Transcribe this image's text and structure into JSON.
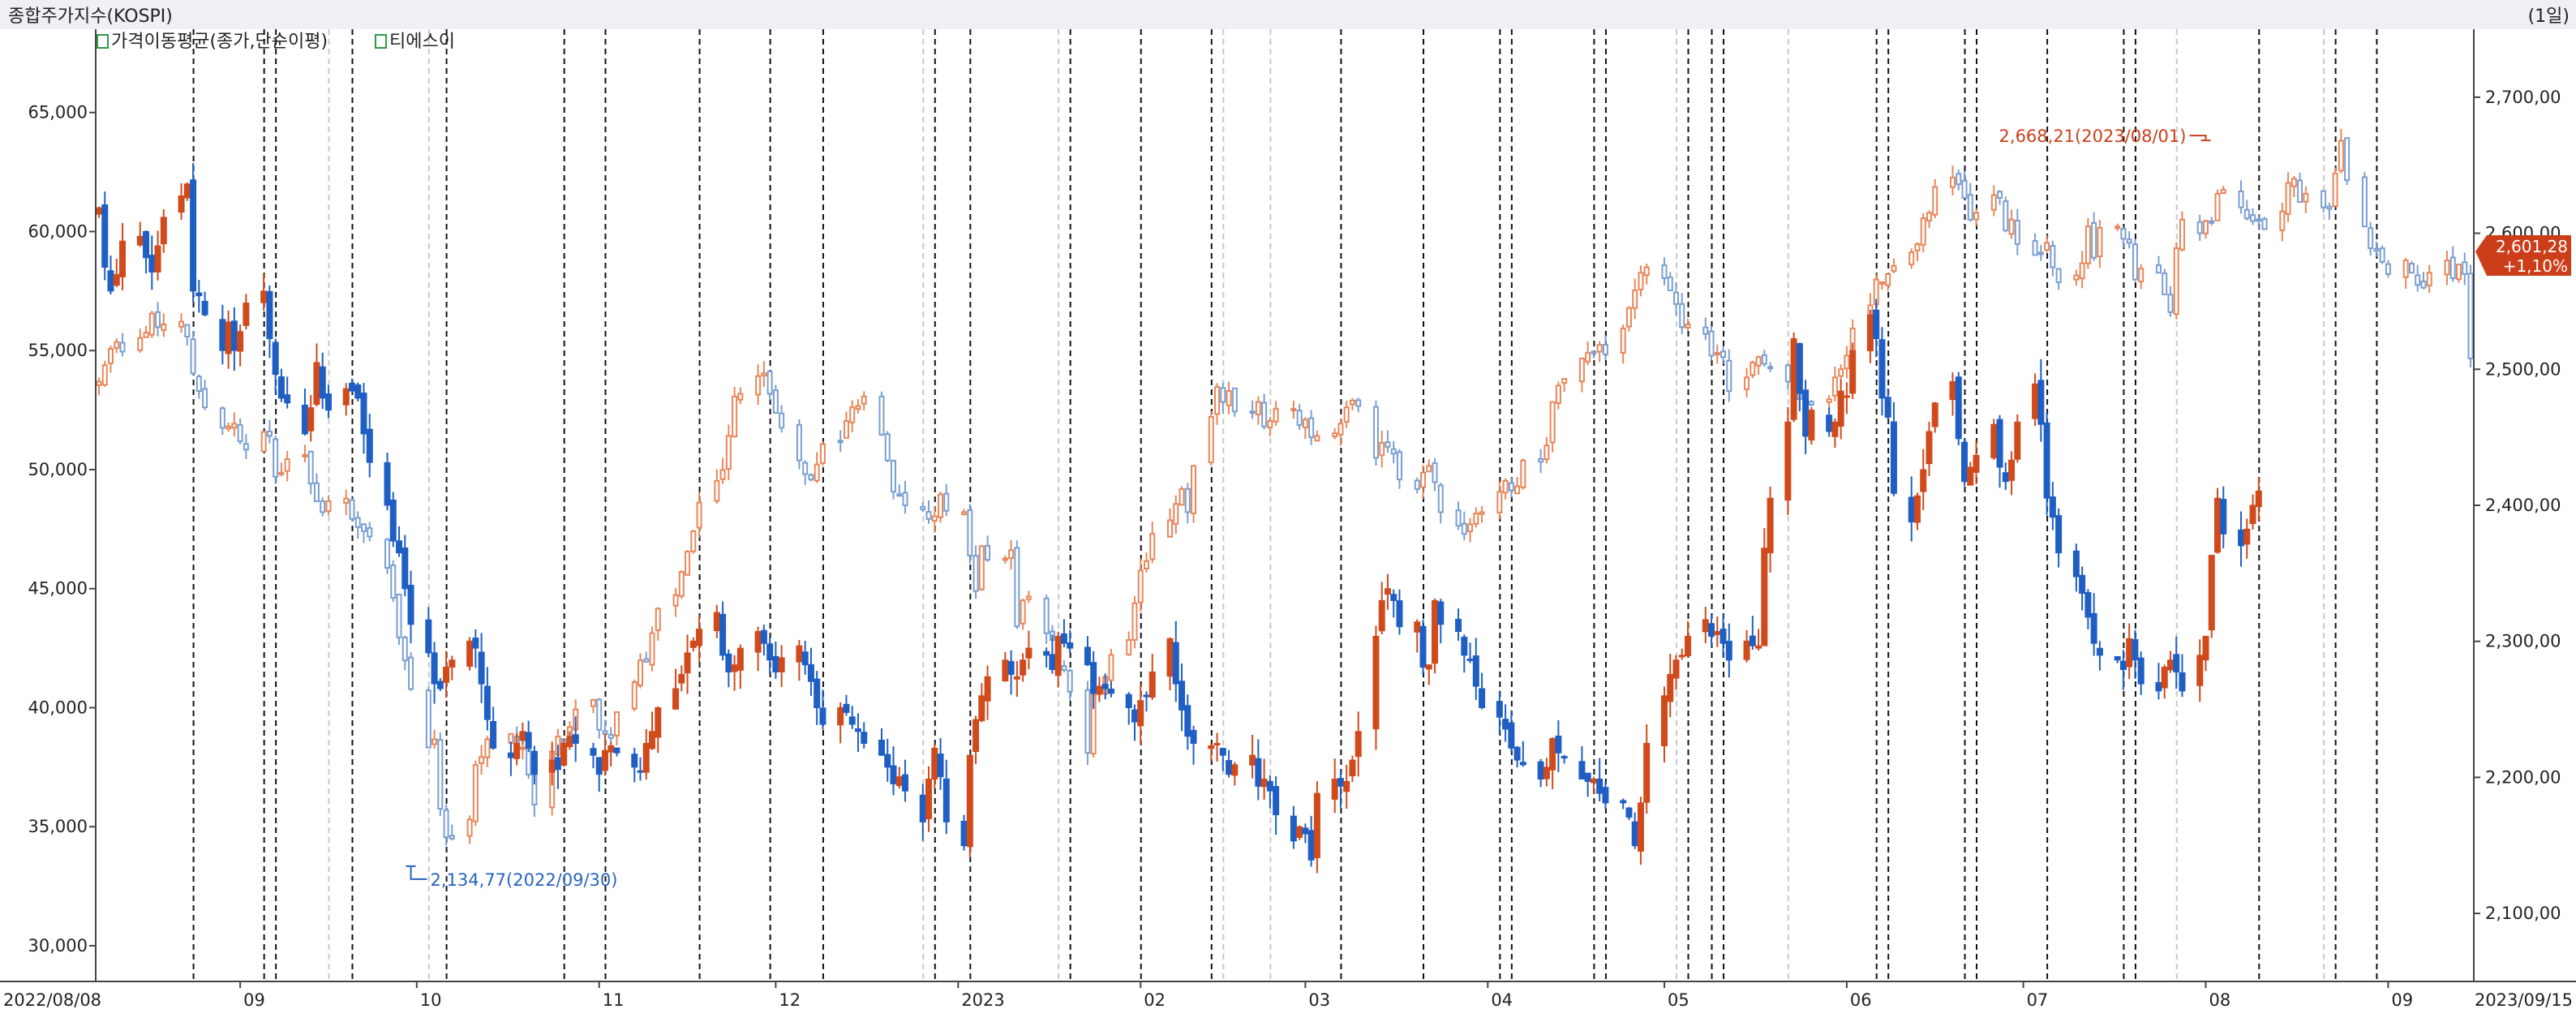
{
  "header": {
    "title": "종합주가지수(KOSPI)",
    "period": "(1일)",
    "legend": [
      {
        "icon": "checkbox-icon",
        "label": "가격이동평균(종가,단순이평)"
      },
      {
        "icon": "checkbox-icon",
        "label": "티에스이"
      }
    ]
  },
  "colors": {
    "up": "#d04a1c",
    "down": "#1f5fc4",
    "index_up": "#e8875a",
    "index_down": "#7a9fd2",
    "header_bg": "#eef0f4",
    "current_price_bg": "#cc3e1a"
  },
  "chart_data": {
    "type": "candlestick",
    "x_range": [
      "2022/08/08",
      "2023/09/15"
    ],
    "x_tick_labels": [
      "2022/08/08",
      "09",
      "10",
      "11",
      "12",
      "2023",
      "02",
      "03",
      "04",
      "05",
      "06",
      "07",
      "08",
      "09",
      "2023/09/15"
    ],
    "left_axis": {
      "ylim": [
        28500,
        68500
      ],
      "ticks": [
        "30,000",
        "35,000",
        "40,000",
        "45,000",
        "50,000",
        "55,000",
        "60,000",
        "65,000"
      ]
    },
    "right_axis": {
      "ylim": [
        2050,
        2750
      ],
      "ticks": [
        "2,100,00",
        "2,200,00",
        "2,300,00",
        "2,400,00",
        "2,500,00",
        "2,600,00",
        "2,700,00"
      ]
    },
    "annotations": {
      "low": {
        "label": "2,134,77(2022/09/30)",
        "value": 2134.77,
        "date": "2022/09/30"
      },
      "high": {
        "label": "2,668,21(2023/08/01)",
        "value": 2668.21,
        "date": "2023/08/01"
      }
    },
    "current_price": {
      "value": "2,601,28",
      "change": "+1,10%"
    },
    "stock_series": {
      "name": "티에스이",
      "close": [
        61000,
        58500,
        57500,
        58200,
        59600,
        59800,
        58900,
        58300,
        59400,
        60600,
        61500,
        62000,
        57500,
        57300,
        56500,
        55000,
        56200,
        55000,
        55800,
        57000,
        57500,
        55500,
        54000,
        53000,
        52800,
        51500,
        52600,
        54500,
        53000,
        52500,
        53400,
        53300,
        53000,
        51500,
        50300,
        48500,
        47000,
        46500,
        45000,
        43500,
        42300,
        41000,
        40800,
        41700,
        42000,
        42800,
        42500,
        41000,
        39500,
        38300,
        37900,
        38500,
        39000,
        38300,
        37200,
        37800,
        37400,
        38500,
        38800,
        38500,
        38000,
        37200,
        38200,
        38400,
        38100,
        37500,
        37300,
        38500,
        39000,
        40000,
        40800,
        41400,
        42300,
        42800,
        43300,
        44000,
        42200,
        41500,
        41800,
        42500,
        43200,
        42700,
        42000,
        41500,
        42100,
        42600,
        41800,
        41100,
        40000,
        39300,
        40000,
        39800,
        39300,
        39000,
        38500,
        38000,
        37500,
        36800,
        37100,
        36500,
        35200,
        37000,
        38300,
        37100,
        35200,
        34200,
        38000,
        39500,
        40500,
        41300,
        42000,
        41400,
        41300,
        42000,
        42500,
        42200,
        41600,
        43000,
        42700,
        42500,
        41800,
        40600,
        40900,
        40800,
        40600,
        40000,
        39400,
        40300,
        40500,
        41500,
        42900,
        41000,
        39900,
        38800,
        38500,
        38400,
        38500,
        38000,
        37200,
        37600,
        38000,
        36700,
        37000,
        36500,
        35500,
        34400,
        35000,
        34700,
        33600,
        36400,
        37000,
        36700,
        36900,
        37800,
        39000,
        43000,
        44500,
        45000,
        44500,
        43400,
        43600,
        41700,
        41800,
        44500,
        43500,
        43200,
        42200,
        42000,
        40900,
        40000,
        39600,
        39100,
        38300,
        37800,
        37600,
        37000,
        37500,
        38700,
        38100,
        37900,
        37000,
        36900,
        37000,
        36400,
        36000,
        36000,
        35400,
        34200,
        36000,
        38500,
        40500,
        41400,
        42000,
        42200,
        43000,
        43700,
        43000,
        43200,
        42700,
        42000,
        42800,
        42600,
        42600,
        46700,
        48800,
        52000,
        55500,
        53200,
        51400,
        52500,
        51600,
        52000,
        53300,
        53100,
        55000,
        56500,
        55500,
        53000,
        52200,
        49000,
        47800,
        48900,
        50000,
        51600,
        52800,
        53700,
        51300,
        49500,
        50100,
        50600,
        51900,
        50100,
        49500,
        50400,
        52000,
        53600,
        51900,
        48800,
        48000,
        46500,
        45500,
        44800,
        43800,
        42700,
        42200,
        42000,
        41600,
        42900,
        42000,
        41000,
        40700,
        41700,
        42000,
        41500,
        40700,
        42200,
        43000,
        46400,
        48800,
        47300,
        46800,
        47500,
        48500,
        49100
      ]
    },
    "index_series": {
      "name": "KOSPI",
      "close": [
        2491,
        2503,
        2515,
        2520,
        2513,
        2523,
        2527,
        2541,
        2531,
        2533,
        2535,
        2524,
        2497,
        2484,
        2472,
        2457,
        2458,
        2460,
        2447,
        2441,
        2454,
        2451,
        2421,
        2424,
        2434,
        2437,
        2416,
        2403,
        2395,
        2403,
        2405,
        2390,
        2384,
        2381,
        2377,
        2354,
        2332,
        2303,
        2286,
        2265,
        2222,
        2228,
        2177,
        2156,
        2155,
        2169,
        2209,
        2215,
        2228,
        2226,
        2232,
        2220,
        2222,
        2202,
        2180,
        2219,
        2230,
        2223,
        2237,
        2250,
        2257,
        2235,
        2232,
        2229,
        2248,
        2270,
        2286,
        2285,
        2306,
        2324,
        2334,
        2351,
        2366,
        2381,
        2402,
        2418,
        2426,
        2451,
        2480,
        2482,
        2495,
        2497,
        2482,
        2468,
        2457,
        2433,
        2423,
        2419,
        2430,
        2445,
        2447,
        2462,
        2472,
        2473,
        2480,
        2452,
        2433,
        2410,
        2407,
        2400,
        2397,
        2390,
        2392,
        2408,
        2396,
        2395,
        2363,
        2337,
        2370,
        2360,
        2361,
        2367,
        2311,
        2330,
        2333,
        2306,
        2301,
        2281,
        2279,
        2263,
        2218,
        2261,
        2264,
        2274,
        2290,
        2301,
        2328,
        2352,
        2359,
        2379,
        2389,
        2401,
        2412,
        2395,
        2429,
        2465,
        2487,
        2476,
        2484,
        2469,
        2468,
        2476,
        2458,
        2462,
        2471,
        2471,
        2459,
        2463,
        2450,
        2451,
        2453,
        2460,
        2472,
        2477,
        2473,
        2435,
        2446,
        2443,
        2438,
        2419,
        2412,
        2424,
        2429,
        2417,
        2395,
        2385,
        2379,
        2386,
        2394,
        2395,
        2410,
        2418,
        2411,
        2414,
        2433,
        2432,
        2444,
        2476,
        2488,
        2493,
        2508,
        2512,
        2512,
        2518,
        2511,
        2530,
        2545,
        2558,
        2571,
        2575,
        2567,
        2558,
        2548,
        2531,
        2533,
        2526,
        2510,
        2512,
        2509,
        2484,
        2494,
        2505,
        2509,
        2504,
        2501,
        2491,
        2488,
        2478,
        2477,
        2474,
        2478,
        2494,
        2500,
        2510,
        2530,
        2547,
        2566,
        2564,
        2570,
        2576,
        2586,
        2592,
        2611,
        2615,
        2634,
        2641,
        2636,
        2626,
        2610,
        2615,
        2628,
        2626,
        2602,
        2610,
        2592,
        2584,
        2585,
        2593,
        2575,
        2564,
        2569,
        2578,
        2605,
        2582,
        2604,
        2605,
        2596,
        2593,
        2566,
        2574,
        2571,
        2555,
        2542,
        2589,
        2610,
        2600,
        2609,
        2608,
        2629,
        2632,
        2619,
        2611,
        2609,
        2610,
        2603,
        2616,
        2637,
        2640,
        2623,
        2629,
        2619,
        2618,
        2644,
        2668,
        2639,
        2605,
        2589,
        2587,
        2579,
        2570,
        2580,
        2571,
        2562,
        2560,
        2571,
        2580,
        2567,
        2577,
        2570,
        2508,
        2500,
        2512,
        2523,
        2536,
        2545,
        2548,
        2540,
        2522,
        2530,
        2543,
        2557,
        2564,
        2559,
        2557,
        2559,
        2556,
        2584,
        2578,
        2579,
        2568,
        2585,
        2582,
        2584,
        2573,
        2563,
        2571,
        2560,
        2578,
        2601
      ]
    }
  }
}
